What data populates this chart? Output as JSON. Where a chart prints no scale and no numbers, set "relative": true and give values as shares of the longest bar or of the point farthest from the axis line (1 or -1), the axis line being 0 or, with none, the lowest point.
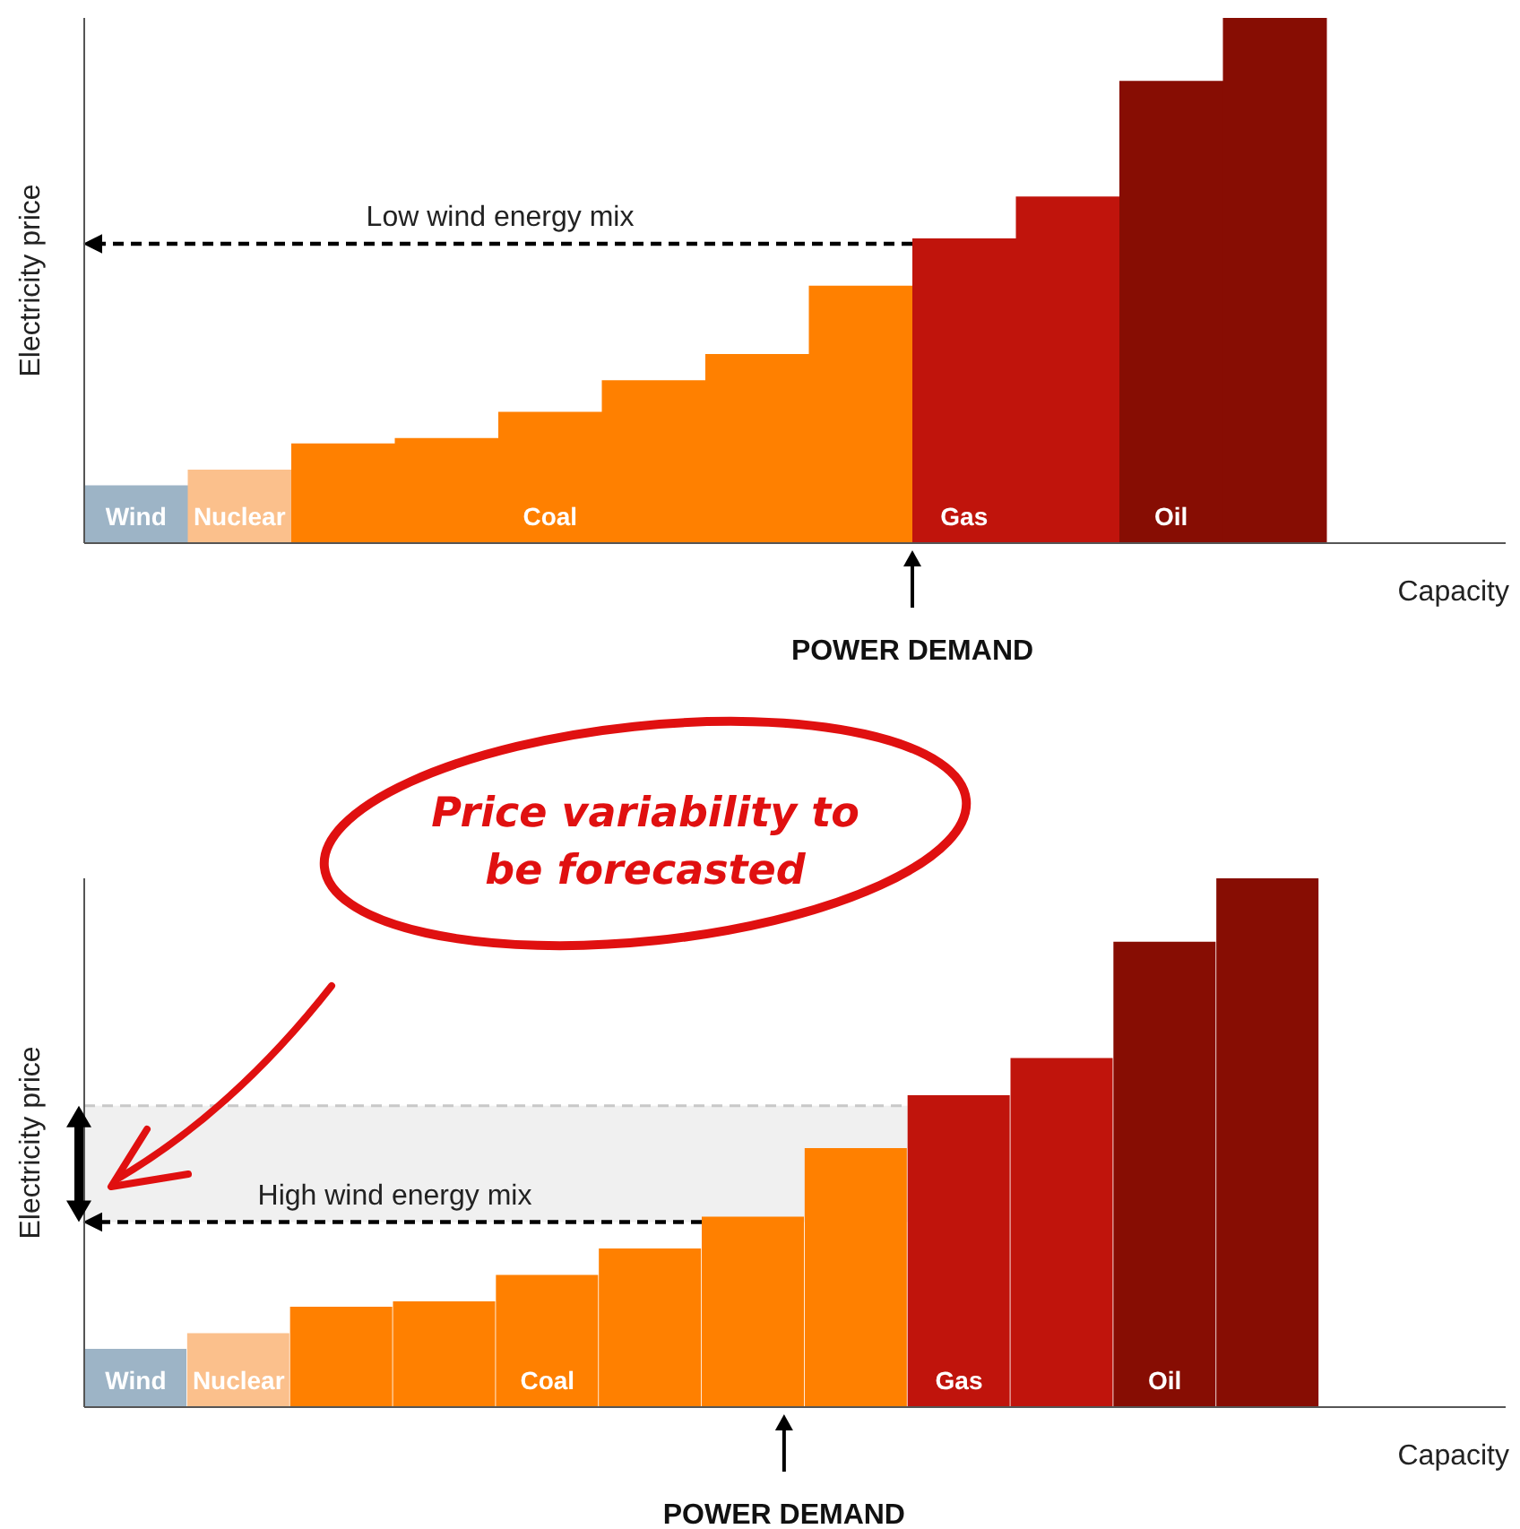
{
  "chart_data": [
    {
      "type": "bar",
      "relative": true,
      "ylabel": "Electricity price",
      "xlabel": "Capacity",
      "legend": false,
      "grid": false,
      "categories": [
        "Wind",
        "Nuclear",
        null,
        null,
        "Coal",
        null,
        null,
        null,
        "Gas",
        null,
        "Oil",
        null
      ],
      "values": [
        0.11,
        0.14,
        0.19,
        0.2,
        0.25,
        0.31,
        0.36,
        0.49,
        0.58,
        0.66,
        0.88,
        1
      ],
      "colors": [
        "#9db4c6",
        "#fbc08c",
        "#ff8000",
        "#ff8000",
        "#ff8000",
        "#ff8000",
        "#ff8000",
        "#ff8000",
        "#c0140c",
        "#c0140c",
        "#870d03",
        "#870d03"
      ],
      "ref_lines": [
        {
          "axis": "y",
          "value": 0.57,
          "label": "Low wind energy mix",
          "color": "#000000",
          "line_style": "dashed"
        }
      ],
      "annotations": [
        "POWER DEMAND"
      ]
    },
    {
      "type": "bar",
      "relative": true,
      "ylabel": "Electricity price",
      "xlabel": "Capacity",
      "legend": false,
      "grid": false,
      "categories": [
        "Wind",
        "Nuclear",
        null,
        null,
        "Coal",
        null,
        null,
        null,
        "Gas",
        null,
        "Oil",
        null
      ],
      "values": [
        0.11,
        0.14,
        0.19,
        0.2,
        0.25,
        0.3,
        0.36,
        0.49,
        0.59,
        0.66,
        0.88,
        1
      ],
      "colors": [
        "#9db4c6",
        "#fbc08c",
        "#ff8000",
        "#ff8000",
        "#ff8000",
        "#ff8000",
        "#ff8000",
        "#ff8000",
        "#c0140c",
        "#c0140c",
        "#870d03",
        "#870d03"
      ],
      "ref_lines": [
        {
          "axis": "y",
          "value": 0.35,
          "label": "High wind energy mix",
          "color": "#000000",
          "line_style": "dashed"
        }
      ],
      "bands": [
        {
          "axis": "y",
          "from": 0.35,
          "to": 0.57,
          "color": "#f0f0f0"
        }
      ],
      "annotations": [
        "POWER DEMAND",
        "Price variability to be forecasted"
      ]
    }
  ]
}
